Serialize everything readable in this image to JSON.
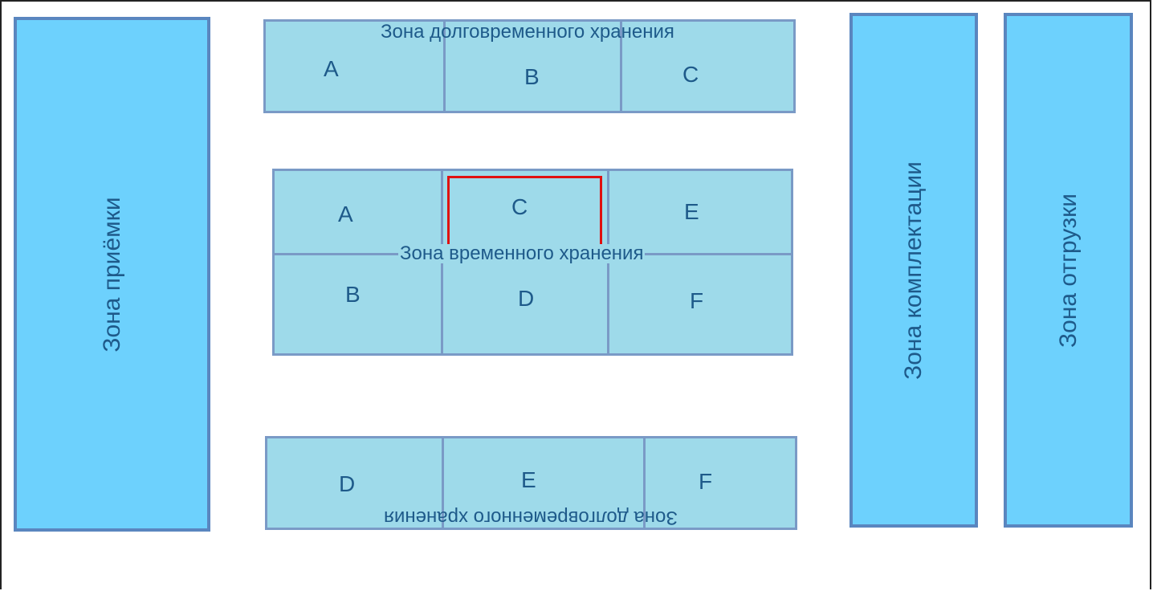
{
  "zones": {
    "receiving": "Зона приёмки",
    "picking": "Зона комплектации",
    "shipping": "Зона отгрузки"
  },
  "long_term_top": {
    "title": "Зона долговременного хранения",
    "cells": [
      "A",
      "B",
      "C"
    ]
  },
  "temporary": {
    "title": "Зона временного хранения",
    "cells": [
      "A",
      "C",
      "E",
      "B",
      "D",
      "F"
    ]
  },
  "long_term_bottom": {
    "title": "Зона долговременного хранения",
    "cells": [
      "D",
      "E",
      "F"
    ]
  },
  "colors": {
    "side_zone_fill": "#6dd1fd",
    "storage_fill": "#9edaea",
    "border": "#7a9ac6",
    "text": "#1e5a8a",
    "highlight": "#e01010"
  }
}
